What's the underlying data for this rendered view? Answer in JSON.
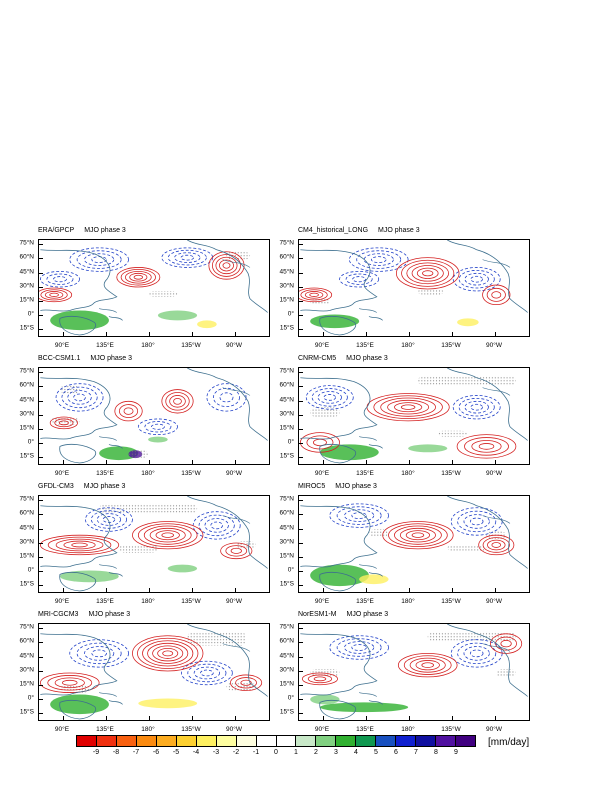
{
  "panels": [
    {
      "model": "ERA/GPCP",
      "phase": "MJO phase 3"
    },
    {
      "model": "CM4_historical_LONG",
      "phase": "MJO phase 3"
    },
    {
      "model": "BCC-CSM1.1",
      "phase": "MJO phase 3"
    },
    {
      "model": "CNRM-CM5",
      "phase": "MJO phase 3"
    },
    {
      "model": "GFDL-CM3",
      "phase": "MJO phase 3"
    },
    {
      "model": "MIROC5",
      "phase": "MJO phase 3"
    },
    {
      "model": "MRI-CGCM3",
      "phase": "MJO phase 3"
    },
    {
      "model": "NorESM1-M",
      "phase": "MJO phase 3"
    }
  ],
  "lat_labels": [
    "75°N",
    "60°N",
    "45°N",
    "30°N",
    "15°N",
    "0°",
    "15°S"
  ],
  "lon_labels": [
    "90°E",
    "135°E",
    "180°",
    "135°W",
    "90°W"
  ],
  "colorbar": {
    "labels": [
      "-9",
      "-8",
      "-7",
      "-6",
      "-5",
      "-4",
      "-3",
      "-2",
      "-1",
      "0",
      "1",
      "2",
      "3",
      "4",
      "5",
      "6",
      "7",
      "8",
      "9"
    ],
    "colors": [
      "#e00000",
      "#f03010",
      "#f86010",
      "#fa8a10",
      "#fcac20",
      "#fdd030",
      "#fef060",
      "#fefea0",
      "#fefee0",
      "#ffffff",
      "#ffffff",
      "#c8e8c8",
      "#80d080",
      "#30b030",
      "#109850",
      "#1850c0",
      "#1020d0",
      "#1010a0",
      "#5010a0",
      "#400080"
    ],
    "units": "[mm/day]"
  },
  "map_colors": {
    "coast": "#3d6f8e",
    "positive_contour": "#d42020",
    "negative_contour": "#1f3fc8",
    "stipple": "#777777"
  }
}
